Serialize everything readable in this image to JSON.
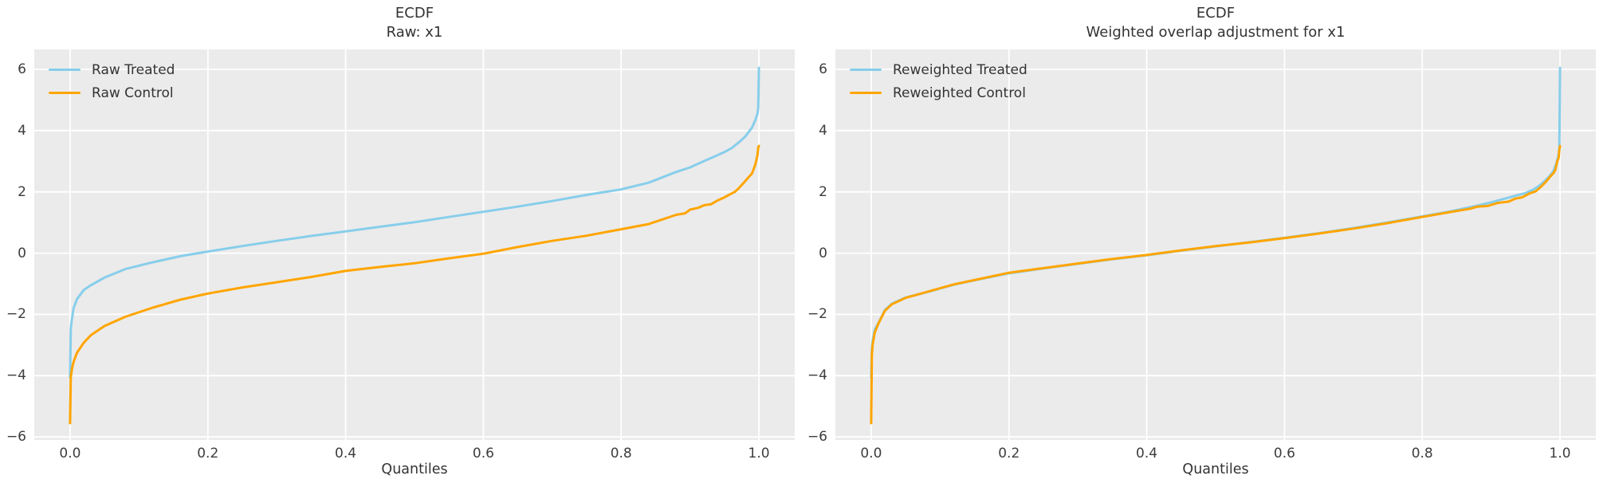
{
  "figure": {
    "background": "#ffffff",
    "axes_background": "#ebebeb",
    "grid_color": "#ffffff",
    "title_color": "#333333",
    "tick_color": "#3d3d3d",
    "treated_color": "#87ceeb",
    "control_color": "#ffa500"
  },
  "chart_data": [
    {
      "type": "line",
      "title": "ECDF",
      "subtitle": "Raw: x1",
      "xlabel": "Quantiles",
      "xlim": [
        -0.052,
        1.052
      ],
      "ylim": [
        -6.1,
        6.65
      ],
      "grid": true,
      "legend_position": "upper-left",
      "xticks": [
        {
          "v": 0.0,
          "label": "0.0"
        },
        {
          "v": 0.2,
          "label": "0.2"
        },
        {
          "v": 0.4,
          "label": "0.4"
        },
        {
          "v": 0.6,
          "label": "0.6"
        },
        {
          "v": 0.8,
          "label": "0.8"
        },
        {
          "v": 1.0,
          "label": "1.0"
        }
      ],
      "yticks": [
        {
          "v": -6,
          "label": "−6"
        },
        {
          "v": -4,
          "label": "−4"
        },
        {
          "v": -2,
          "label": "−2"
        },
        {
          "v": 0,
          "label": "0"
        },
        {
          "v": 2,
          "label": "2"
        },
        {
          "v": 4,
          "label": "4"
        },
        {
          "v": 6,
          "label": "6"
        }
      ],
      "series": [
        {
          "name": "Raw Treated",
          "color": "#87ceeb",
          "points": [
            [
              0.0,
              -4.05
            ],
            [
              0.001,
              -2.5
            ],
            [
              0.002,
              -2.25
            ],
            [
              0.005,
              -1.8
            ],
            [
              0.01,
              -1.5
            ],
            [
              0.02,
              -1.2
            ],
            [
              0.03,
              -1.05
            ],
            [
              0.05,
              -0.8
            ],
            [
              0.08,
              -0.52
            ],
            [
              0.12,
              -0.3
            ],
            [
              0.16,
              -0.1
            ],
            [
              0.2,
              0.05
            ],
            [
              0.25,
              0.23
            ],
            [
              0.3,
              0.4
            ],
            [
              0.35,
              0.56
            ],
            [
              0.4,
              0.71
            ],
            [
              0.45,
              0.86
            ],
            [
              0.5,
              1.01
            ],
            [
              0.55,
              1.18
            ],
            [
              0.6,
              1.35
            ],
            [
              0.65,
              1.52
            ],
            [
              0.7,
              1.7
            ],
            [
              0.75,
              1.9
            ],
            [
              0.8,
              2.08
            ],
            [
              0.84,
              2.3
            ],
            [
              0.88,
              2.65
            ],
            [
              0.9,
              2.8
            ],
            [
              0.92,
              3.0
            ],
            [
              0.94,
              3.2
            ],
            [
              0.95,
              3.3
            ],
            [
              0.96,
              3.42
            ],
            [
              0.97,
              3.6
            ],
            [
              0.98,
              3.8
            ],
            [
              0.985,
              3.95
            ],
            [
              0.99,
              4.1
            ],
            [
              0.995,
              4.35
            ],
            [
              0.998,
              4.55
            ],
            [
              0.999,
              4.75
            ],
            [
              1.0,
              6.05
            ]
          ]
        },
        {
          "name": "Raw Control",
          "color": "#ffa500",
          "points": [
            [
              0.0,
              -5.55
            ],
            [
              0.001,
              -4.05
            ],
            [
              0.003,
              -3.75
            ],
            [
              0.005,
              -3.55
            ],
            [
              0.01,
              -3.25
            ],
            [
              0.02,
              -2.92
            ],
            [
              0.03,
              -2.68
            ],
            [
              0.05,
              -2.38
            ],
            [
              0.08,
              -2.08
            ],
            [
              0.12,
              -1.78
            ],
            [
              0.16,
              -1.52
            ],
            [
              0.2,
              -1.32
            ],
            [
              0.25,
              -1.12
            ],
            [
              0.3,
              -0.95
            ],
            [
              0.35,
              -0.78
            ],
            [
              0.4,
              -0.58
            ],
            [
              0.45,
              -0.45
            ],
            [
              0.5,
              -0.33
            ],
            [
              0.55,
              -0.17
            ],
            [
              0.6,
              -0.02
            ],
            [
              0.65,
              0.2
            ],
            [
              0.7,
              0.4
            ],
            [
              0.75,
              0.57
            ],
            [
              0.8,
              0.78
            ],
            [
              0.84,
              0.95
            ],
            [
              0.88,
              1.25
            ],
            [
              0.893,
              1.3
            ],
            [
              0.9,
              1.42
            ],
            [
              0.912,
              1.48
            ],
            [
              0.92,
              1.56
            ],
            [
              0.931,
              1.6
            ],
            [
              0.94,
              1.72
            ],
            [
              0.95,
              1.82
            ],
            [
              0.958,
              1.92
            ],
            [
              0.965,
              2.0
            ],
            [
              0.97,
              2.1
            ],
            [
              0.978,
              2.3
            ],
            [
              0.984,
              2.45
            ],
            [
              0.99,
              2.6
            ],
            [
              0.995,
              2.9
            ],
            [
              0.998,
              3.2
            ],
            [
              0.999,
              3.45
            ],
            [
              1.0,
              3.5
            ]
          ]
        }
      ]
    },
    {
      "type": "line",
      "title": "ECDF",
      "subtitle": "Weighted overlap adjustment for x1",
      "xlabel": "Quantiles",
      "xlim": [
        -0.052,
        1.052
      ],
      "ylim": [
        -6.1,
        6.65
      ],
      "grid": true,
      "legend_position": "upper-left",
      "xticks": [
        {
          "v": 0.0,
          "label": "0.0"
        },
        {
          "v": 0.2,
          "label": "0.2"
        },
        {
          "v": 0.4,
          "label": "0.4"
        },
        {
          "v": 0.6,
          "label": "0.6"
        },
        {
          "v": 0.8,
          "label": "0.8"
        },
        {
          "v": 1.0,
          "label": "1.0"
        }
      ],
      "yticks": [
        {
          "v": -6,
          "label": "−6"
        },
        {
          "v": -4,
          "label": "−4"
        },
        {
          "v": -2,
          "label": "−2"
        },
        {
          "v": 0,
          "label": "0"
        },
        {
          "v": 2,
          "label": "2"
        },
        {
          "v": 4,
          "label": "4"
        },
        {
          "v": 6,
          "label": "6"
        }
      ],
      "series": [
        {
          "name": "Reweighted Treated",
          "color": "#87ceeb",
          "points": [
            [
              0.0,
              -4.05
            ],
            [
              0.001,
              -3.1
            ],
            [
              0.002,
              -2.85
            ],
            [
              0.005,
              -2.5
            ],
            [
              0.01,
              -2.3
            ],
            [
              0.02,
              -1.85
            ],
            [
              0.03,
              -1.65
            ],
            [
              0.05,
              -1.45
            ],
            [
              0.08,
              -1.28
            ],
            [
              0.12,
              -1.03
            ],
            [
              0.16,
              -0.84
            ],
            [
              0.2,
              -0.66
            ],
            [
              0.25,
              -0.5
            ],
            [
              0.3,
              -0.35
            ],
            [
              0.35,
              -0.2
            ],
            [
              0.4,
              -0.07
            ],
            [
              0.45,
              0.08
            ],
            [
              0.5,
              0.22
            ],
            [
              0.55,
              0.36
            ],
            [
              0.6,
              0.5
            ],
            [
              0.65,
              0.65
            ],
            [
              0.7,
              0.82
            ],
            [
              0.75,
              1.0
            ],
            [
              0.8,
              1.2
            ],
            [
              0.84,
              1.36
            ],
            [
              0.88,
              1.55
            ],
            [
              0.9,
              1.66
            ],
            [
              0.92,
              1.78
            ],
            [
              0.94,
              1.9
            ],
            [
              0.95,
              1.96
            ],
            [
              0.96,
              2.06
            ],
            [
              0.97,
              2.2
            ],
            [
              0.98,
              2.4
            ],
            [
              0.985,
              2.52
            ],
            [
              0.99,
              2.66
            ],
            [
              0.995,
              2.94
            ],
            [
              0.998,
              3.22
            ],
            [
              0.999,
              3.44
            ],
            [
              1.0,
              6.05
            ]
          ]
        },
        {
          "name": "Reweighted Control",
          "color": "#ffa500",
          "points": [
            [
              0.0,
              -5.55
            ],
            [
              0.001,
              -3.3
            ],
            [
              0.002,
              -3.0
            ],
            [
              0.005,
              -2.6
            ],
            [
              0.01,
              -2.32
            ],
            [
              0.02,
              -1.88
            ],
            [
              0.03,
              -1.67
            ],
            [
              0.05,
              -1.46
            ],
            [
              0.08,
              -1.27
            ],
            [
              0.12,
              -1.02
            ],
            [
              0.16,
              -0.83
            ],
            [
              0.2,
              -0.64
            ],
            [
              0.25,
              -0.49
            ],
            [
              0.3,
              -0.34
            ],
            [
              0.35,
              -0.19
            ],
            [
              0.4,
              -0.06
            ],
            [
              0.45,
              0.09
            ],
            [
              0.5,
              0.23
            ],
            [
              0.55,
              0.35
            ],
            [
              0.6,
              0.49
            ],
            [
              0.65,
              0.64
            ],
            [
              0.7,
              0.8
            ],
            [
              0.75,
              0.98
            ],
            [
              0.8,
              1.18
            ],
            [
              0.84,
              1.34
            ],
            [
              0.87,
              1.45
            ],
            [
              0.88,
              1.52
            ],
            [
              0.895,
              1.54
            ],
            [
              0.91,
              1.64
            ],
            [
              0.925,
              1.68
            ],
            [
              0.935,
              1.78
            ],
            [
              0.945,
              1.82
            ],
            [
              0.955,
              1.94
            ],
            [
              0.965,
              2.02
            ],
            [
              0.972,
              2.16
            ],
            [
              0.98,
              2.34
            ],
            [
              0.985,
              2.48
            ],
            [
              0.99,
              2.6
            ],
            [
              0.993,
              2.7
            ],
            [
              0.996,
              3.0
            ],
            [
              0.998,
              3.1
            ],
            [
              0.999,
              3.38
            ],
            [
              1.0,
              3.5
            ]
          ]
        }
      ]
    }
  ]
}
